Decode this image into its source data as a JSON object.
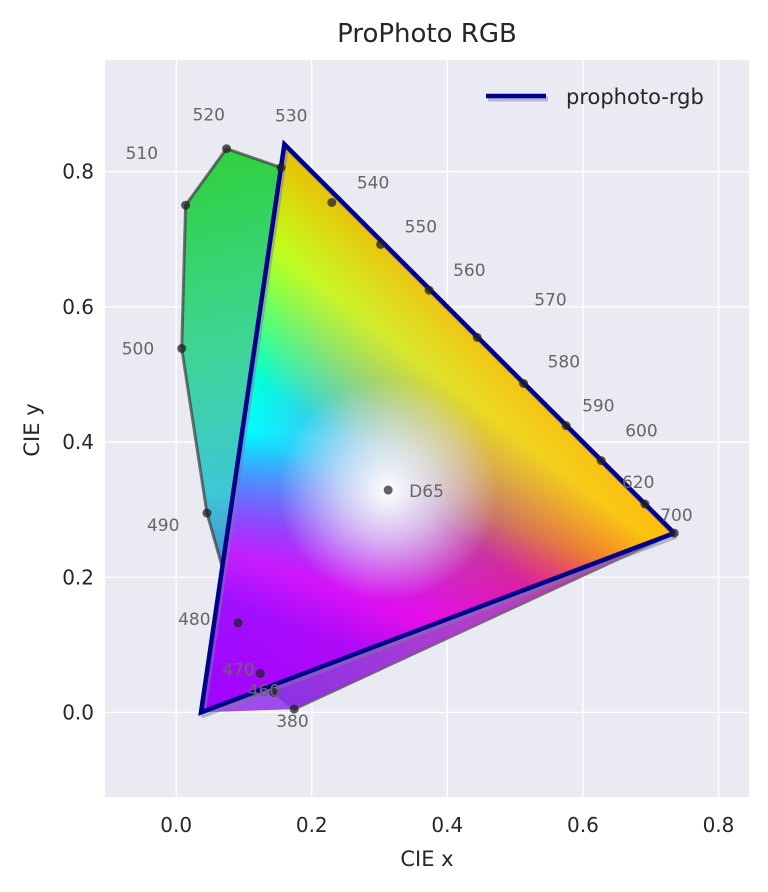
{
  "chart_data": {
    "type": "scatter",
    "title": "ProPhoto RGB",
    "xlabel": "CIE x",
    "ylabel": "CIE y",
    "xlim": [
      -0.105,
      0.845
    ],
    "ylim": [
      -0.125,
      0.965
    ],
    "xticks": [
      {
        "value": 0.0,
        "label": "0.0"
      },
      {
        "value": 0.2,
        "label": "0.2"
      },
      {
        "value": 0.4,
        "label": "0.4"
      },
      {
        "value": 0.6,
        "label": "0.6"
      },
      {
        "value": 0.8,
        "label": "0.8"
      }
    ],
    "yticks": [
      {
        "value": 0.0,
        "label": "0.0"
      },
      {
        "value": 0.2,
        "label": "0.2"
      },
      {
        "value": 0.4,
        "label": "0.4"
      },
      {
        "value": 0.6,
        "label": "0.6"
      },
      {
        "value": 0.8,
        "label": "0.8"
      }
    ],
    "grid": true,
    "legend": {
      "position": "top-right",
      "entries": [
        {
          "label": "prophoto-rgb",
          "color": "#00008b"
        }
      ]
    },
    "spectral_locus": [
      [
        0.1741,
        0.005
      ],
      [
        0.144,
        0.0297
      ],
      [
        0.1241,
        0.0578
      ],
      [
        0.0913,
        0.1327
      ],
      [
        0.0454,
        0.295
      ],
      [
        0.0082,
        0.5384
      ],
      [
        0.0139,
        0.7502
      ],
      [
        0.0743,
        0.8338
      ],
      [
        0.1547,
        0.8059
      ],
      [
        0.2296,
        0.7543
      ],
      [
        0.3016,
        0.6923
      ],
      [
        0.3731,
        0.6245
      ],
      [
        0.4441,
        0.5547
      ],
      [
        0.5125,
        0.4866
      ],
      [
        0.5752,
        0.4242
      ],
      [
        0.627,
        0.3725
      ],
      [
        0.6915,
        0.3083
      ],
      [
        0.7347,
        0.2653
      ]
    ],
    "wavelength_points": [
      {
        "label": "380",
        "x": 0.1741,
        "y": 0.005
      },
      {
        "label": "460",
        "x": 0.144,
        "y": 0.0297
      },
      {
        "label": "470",
        "x": 0.1241,
        "y": 0.0578
      },
      {
        "label": "480",
        "x": 0.0913,
        "y": 0.1327
      },
      {
        "label": "490",
        "x": 0.0454,
        "y": 0.295
      },
      {
        "label": "500",
        "x": 0.0082,
        "y": 0.5384
      },
      {
        "label": "510",
        "x": 0.0139,
        "y": 0.7502
      },
      {
        "label": "520",
        "x": 0.0743,
        "y": 0.8338
      },
      {
        "label": "530",
        "x": 0.1547,
        "y": 0.8059
      },
      {
        "label": "540",
        "x": 0.2296,
        "y": 0.7543
      },
      {
        "label": "550",
        "x": 0.3016,
        "y": 0.6923
      },
      {
        "label": "560",
        "x": 0.3731,
        "y": 0.6245
      },
      {
        "label": "570",
        "x": 0.4441,
        "y": 0.5547
      },
      {
        "label": "580",
        "x": 0.5125,
        "y": 0.4866
      },
      {
        "label": "590",
        "x": 0.5752,
        "y": 0.4242
      },
      {
        "label": "600",
        "x": 0.627,
        "y": 0.3725
      },
      {
        "label": "620",
        "x": 0.6915,
        "y": 0.3083
      },
      {
        "label": "700",
        "x": 0.7347,
        "y": 0.2653
      }
    ],
    "white_point": {
      "label": "D65",
      "x": 0.3127,
      "y": 0.329
    },
    "gamut": {
      "name": "prophoto-rgb",
      "color": "#00008b",
      "vertices": [
        [
          0.7347,
          0.2653
        ],
        [
          0.1596,
          0.8404
        ],
        [
          0.0366,
          0.0001
        ]
      ]
    }
  }
}
